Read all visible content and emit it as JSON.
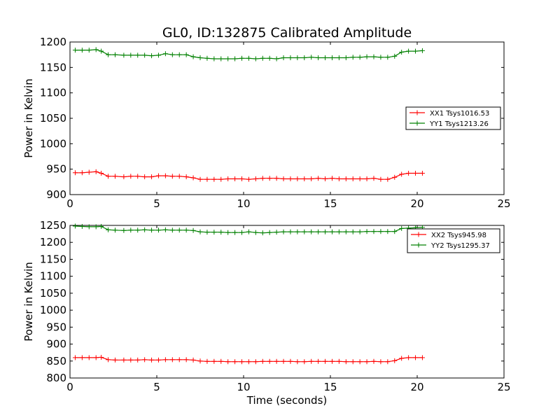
{
  "chart_data": [
    {
      "type": "line",
      "title": "GL0, ID:132875 Calibrated Amplitude",
      "xlabel": "",
      "ylabel": "Power in Kelvin",
      "xlim": [
        0,
        25
      ],
      "ylim": [
        900,
        1200
      ],
      "xticks": [
        "0",
        "5",
        "10",
        "15",
        "20",
        "25"
      ],
      "yticks": [
        "900",
        "950",
        "1000",
        "1050",
        "1100",
        "1150",
        "1200"
      ],
      "legend_position": "right",
      "grid": false,
      "x": [
        0.3,
        0.7,
        1.1,
        1.5,
        1.8,
        2.2,
        2.6,
        3.1,
        3.5,
        3.9,
        4.3,
        4.7,
        5.1,
        5.5,
        5.9,
        6.3,
        6.7,
        7.1,
        7.5,
        7.9,
        8.3,
        8.7,
        9.1,
        9.5,
        9.9,
        10.3,
        10.7,
        11.1,
        11.5,
        11.9,
        12.3,
        12.7,
        13.1,
        13.5,
        13.9,
        14.3,
        14.7,
        15.1,
        15.5,
        15.9,
        16.3,
        16.7,
        17.1,
        17.5,
        17.9,
        18.3,
        18.7,
        19.1,
        19.5,
        19.9,
        20.3
      ],
      "series": [
        {
          "name": "XX1 Tsys1016.53",
          "color": "#ff0000",
          "values": [
            943,
            943,
            944,
            945,
            942,
            936,
            936,
            935,
            936,
            936,
            935,
            935,
            937,
            937,
            936,
            936,
            935,
            933,
            930,
            930,
            930,
            930,
            931,
            931,
            931,
            930,
            931,
            932,
            932,
            932,
            931,
            931,
            931,
            931,
            931,
            932,
            931,
            932,
            931,
            931,
            931,
            931,
            931,
            932,
            930,
            930,
            934,
            940,
            942,
            942,
            942
          ]
        },
        {
          "name": "YY1 Tsys1213.26",
          "color": "#008000",
          "values": [
            1184,
            1184,
            1184,
            1185,
            1182,
            1175,
            1175,
            1174,
            1174,
            1174,
            1174,
            1173,
            1174,
            1177,
            1175,
            1175,
            1175,
            1171,
            1169,
            1168,
            1167,
            1167,
            1167,
            1167,
            1168,
            1168,
            1167,
            1168,
            1168,
            1167,
            1169,
            1169,
            1169,
            1169,
            1170,
            1169,
            1169,
            1169,
            1169,
            1169,
            1170,
            1170,
            1171,
            1171,
            1170,
            1170,
            1172,
            1180,
            1182,
            1182,
            1183
          ]
        }
      ]
    },
    {
      "type": "line",
      "title": "",
      "xlabel": "Time (seconds)",
      "ylabel": "Power in Kelvin",
      "xlim": [
        0,
        25
      ],
      "ylim": [
        800,
        1250
      ],
      "xticks": [
        "0",
        "5",
        "10",
        "15",
        "20",
        "25"
      ],
      "yticks": [
        "800",
        "850",
        "900",
        "950",
        "1000",
        "1050",
        "1100",
        "1150",
        "1200",
        "1250"
      ],
      "legend_position": "upper right",
      "grid": false,
      "x": [
        0.3,
        0.7,
        1.1,
        1.5,
        1.8,
        2.2,
        2.6,
        3.1,
        3.5,
        3.9,
        4.3,
        4.7,
        5.1,
        5.5,
        5.9,
        6.3,
        6.7,
        7.1,
        7.5,
        7.9,
        8.3,
        8.7,
        9.1,
        9.5,
        9.9,
        10.3,
        10.7,
        11.1,
        11.5,
        11.9,
        12.3,
        12.7,
        13.1,
        13.5,
        13.9,
        14.3,
        14.7,
        15.1,
        15.5,
        15.9,
        16.3,
        16.7,
        17.1,
        17.5,
        17.9,
        18.3,
        18.7,
        19.1,
        19.5,
        19.9,
        20.3
      ],
      "series": [
        {
          "name": "XX2 Tsys945.98",
          "color": "#ff0000",
          "values": [
            860,
            860,
            860,
            860,
            861,
            854,
            853,
            853,
            853,
            853,
            854,
            853,
            853,
            854,
            854,
            854,
            854,
            853,
            850,
            849,
            849,
            849,
            848,
            848,
            848,
            848,
            848,
            849,
            849,
            849,
            849,
            849,
            848,
            848,
            849,
            849,
            849,
            849,
            849,
            848,
            848,
            848,
            848,
            849,
            848,
            848,
            851,
            858,
            860,
            860,
            860
          ]
        },
        {
          "name": "YY2 Tsys1295.37",
          "color": "#008000",
          "values": [
            1248,
            1247,
            1246,
            1246,
            1247,
            1237,
            1236,
            1235,
            1236,
            1236,
            1237,
            1236,
            1236,
            1237,
            1236,
            1236,
            1236,
            1235,
            1231,
            1230,
            1230,
            1230,
            1229,
            1229,
            1229,
            1231,
            1229,
            1228,
            1229,
            1230,
            1231,
            1231,
            1231,
            1231,
            1231,
            1231,
            1231,
            1231,
            1231,
            1231,
            1231,
            1231,
            1232,
            1232,
            1232,
            1232,
            1232,
            1241,
            1242,
            1243,
            1244
          ]
        }
      ]
    }
  ]
}
